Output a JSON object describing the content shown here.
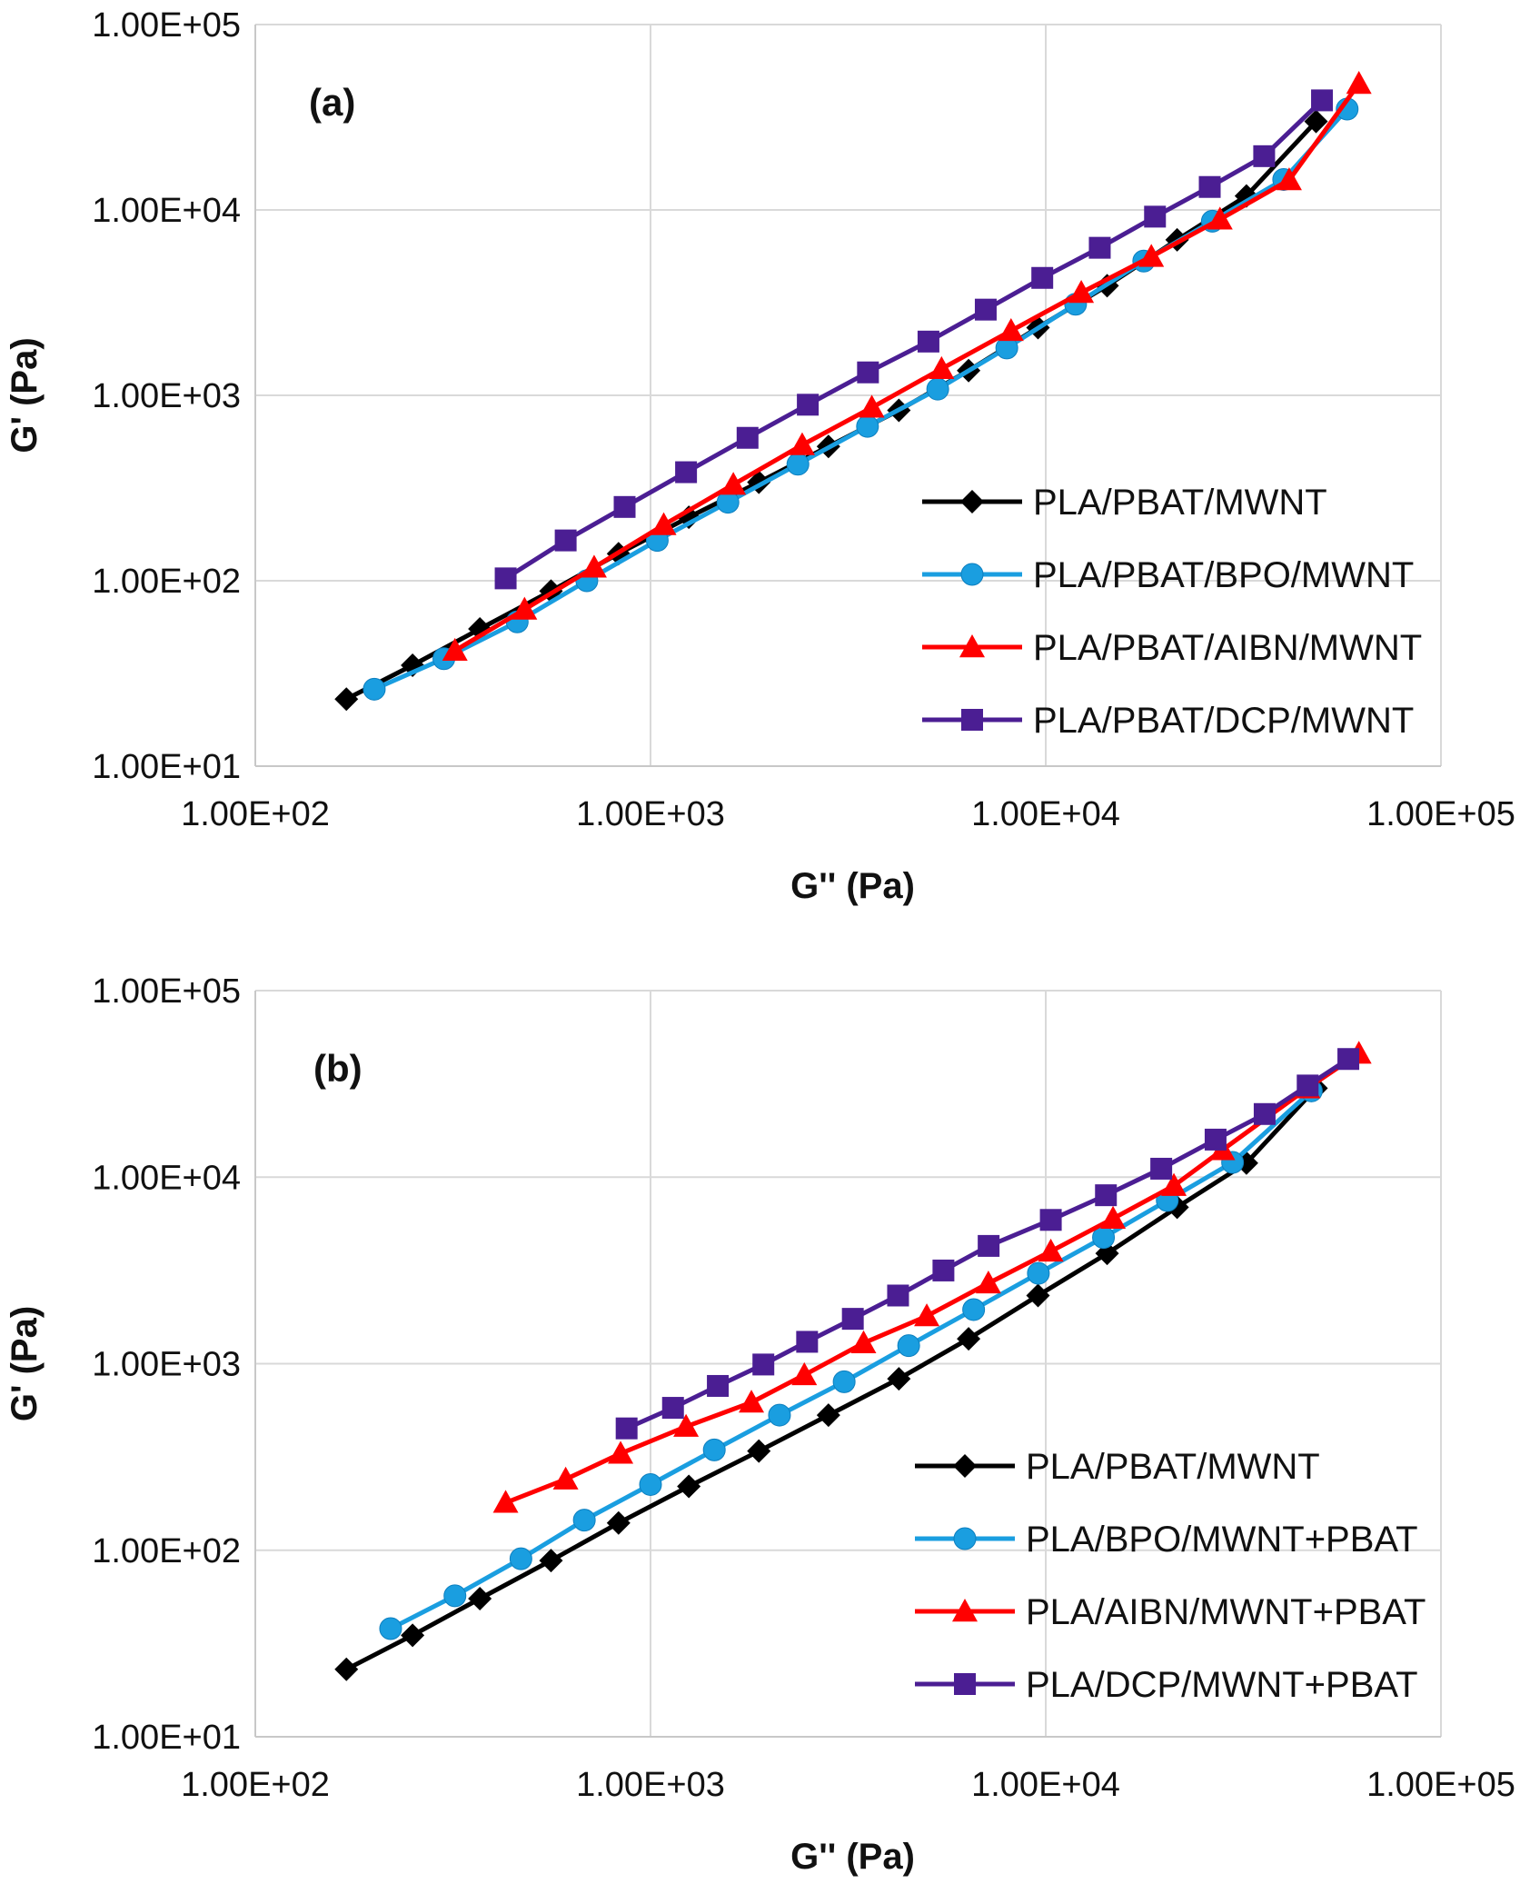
{
  "chart_data": [
    {
      "type": "scatter",
      "panel_label": "(a)",
      "xlabel": "G'' (Pa)",
      "ylabel": "G' (Pa)",
      "xscale": "log",
      "yscale": "log",
      "xlim": [
        100,
        100000
      ],
      "ylim": [
        10,
        100000
      ],
      "xticks": [
        100,
        1000,
        10000,
        100000
      ],
      "yticks": [
        10,
        100,
        1000,
        10000,
        100000
      ],
      "xtick_labels": [
        "1.00E+02",
        "1.00E+03",
        "1.00E+04",
        "1.00E+05"
      ],
      "ytick_labels": [
        "1.00E+01",
        "1.00E+02",
        "1.00E+03",
        "1.00E+04",
        "1.00E+05"
      ],
      "grid": true,
      "legend_position": "bottom-right",
      "series": [
        {
          "name": "PLA/PBAT/MWNT",
          "color": "#000000",
          "marker": "diamond",
          "x": [
            170,
            250,
            370,
            560,
            830,
            1250,
            1880,
            2820,
            4250,
            6380,
            9560,
            14300,
            21500,
            32200,
            48300
          ],
          "y": [
            23,
            35,
            55,
            88,
            140,
            220,
            340,
            530,
            830,
            1360,
            2320,
            3900,
            6900,
            11900,
            30000
          ]
        },
        {
          "name": "PLA/PBAT/BPO/MWNT",
          "color": "#1a9ee0",
          "marker": "circle",
          "x": [
            200,
            300,
            460,
            690,
            1040,
            1570,
            2360,
            3540,
            5330,
            7970,
            11900,
            17700,
            26400,
            40000,
            57900
          ],
          "y": [
            26,
            38,
            60,
            100,
            165,
            265,
            425,
            680,
            1080,
            1800,
            3100,
            5300,
            8700,
            14600,
            35000
          ]
        },
        {
          "name": "PLA/PBAT/AIBN/MWNT",
          "color": "#ff0000",
          "marker": "triangle",
          "x": [
            320,
            480,
            720,
            1080,
            1620,
            2420,
            3630,
            5450,
            8170,
            12300,
            18500,
            27600,
            41300,
            62000
          ],
          "y": [
            42,
            70,
            118,
            200,
            330,
            540,
            860,
            1390,
            2230,
            3580,
            5600,
            8900,
            14500,
            48000
          ]
        },
        {
          "name": "PLA/PBAT/DCP/MWNT",
          "color": "#4b1e93",
          "marker": "square",
          "x": [
            430,
            610,
            860,
            1230,
            1760,
            2500,
            3550,
            5050,
            7050,
            9800,
            13700,
            18900,
            26000,
            35700,
            50000
          ],
          "y": [
            103,
            165,
            250,
            385,
            590,
            890,
            1330,
            1950,
            2900,
            4300,
            6250,
            9200,
            13300,
            19500,
            39000
          ]
        }
      ]
    },
    {
      "type": "scatter",
      "panel_label": "(b)",
      "xlabel": "G'' (Pa)",
      "ylabel": "G' (Pa)",
      "xscale": "log",
      "yscale": "log",
      "xlim": [
        100,
        100000
      ],
      "ylim": [
        10,
        100000
      ],
      "xticks": [
        100,
        1000,
        10000,
        100000
      ],
      "yticks": [
        10,
        100,
        1000,
        10000,
        100000
      ],
      "xtick_labels": [
        "1.00E+02",
        "1.00E+03",
        "1.00E+04",
        "1.00E+05"
      ],
      "ytick_labels": [
        "1.00E+01",
        "1.00E+02",
        "1.00E+03",
        "1.00E+04",
        "1.00E+05"
      ],
      "grid": true,
      "legend_position": "bottom-right",
      "series": [
        {
          "name": "PLA/PBAT/MWNT",
          "color": "#000000",
          "marker": "diamond",
          "x": [
            170,
            250,
            370,
            560,
            830,
            1250,
            1880,
            2820,
            4250,
            6380,
            9560,
            14300,
            21500,
            32200,
            48300
          ],
          "y": [
            23,
            35,
            55,
            88,
            140,
            220,
            340,
            530,
            830,
            1360,
            2320,
            3900,
            6900,
            11900,
            30000
          ]
        },
        {
          "name": "PLA/BPO/MWNT+PBAT",
          "color": "#1a9ee0",
          "marker": "circle",
          "x": [
            220,
            320,
            470,
            680,
            1000,
            1450,
            2120,
            3090,
            4500,
            6570,
            9580,
            14000,
            20300,
            29700,
            47000
          ],
          "y": [
            38,
            57,
            90,
            145,
            225,
            345,
            530,
            800,
            1250,
            1950,
            3050,
            4750,
            7500,
            12000,
            29000
          ]
        },
        {
          "name": "PLA/AIBN/MWNT+PBAT",
          "color": "#ff0000",
          "marker": "triangle",
          "x": [
            430,
            610,
            840,
            1230,
            1800,
            2450,
            3460,
            5000,
            7160,
            10300,
            14800,
            21100,
            28000,
            46000,
            62000
          ],
          "y": [
            180,
            240,
            330,
            460,
            620,
            870,
            1290,
            1800,
            2700,
            4000,
            6000,
            9000,
            14000,
            30000,
            46000
          ]
        },
        {
          "name": "PLA/DCP/MWNT+PBAT",
          "color": "#4b1e93",
          "marker": "square",
          "x": [
            870,
            1140,
            1480,
            1930,
            2490,
            3250,
            4230,
            5510,
            7170,
            10300,
            14200,
            19600,
            26900,
            35800,
            46000,
            58300
          ],
          "y": [
            450,
            580,
            760,
            990,
            1310,
            1740,
            2320,
            3160,
            4280,
            5900,
            8000,
            11100,
            15900,
            21800,
            31000,
            43000
          ]
        }
      ]
    }
  ]
}
